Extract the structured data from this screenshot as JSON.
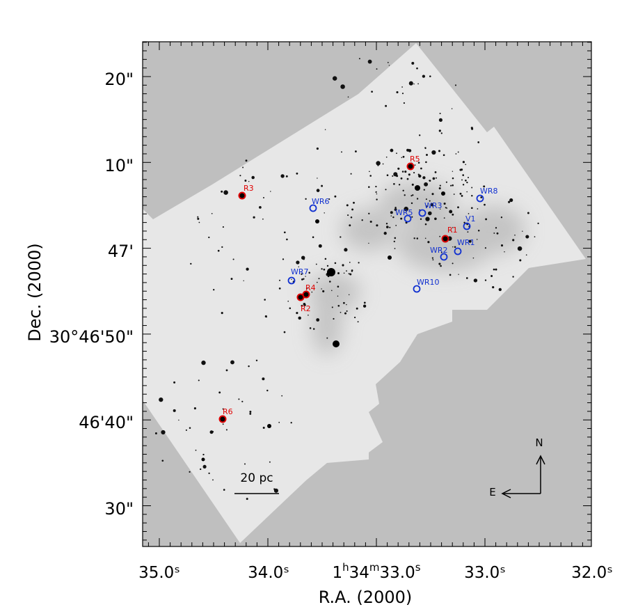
{
  "axes": {
    "xlabel": "R.A. (2000)",
    "ylabel": "Dec. (2000)",
    "x_ticks": [
      "35.0ˢ",
      "34.0ˢ",
      "33.0ˢ",
      "32.0ˢ"
    ],
    "x_tick_center": {
      "h": "1",
      "hsup": "h",
      "m": "34",
      "msup": "m",
      "s": "33.0",
      "ssup": "s"
    },
    "y_ticks": [
      "20\"",
      "10\"",
      "47'",
      "30°46'50\"",
      "46'40\"",
      "30\""
    ]
  },
  "compass": {
    "north": "N",
    "east": "E"
  },
  "scale_bar": {
    "label": "20 pc"
  },
  "markers": {
    "red": [
      "R1",
      "R2",
      "R3",
      "R4",
      "R5",
      "R6"
    ],
    "blue": [
      "WR1",
      "WR2",
      "WR3",
      "WR5",
      "WR6",
      "WR7",
      "WR8",
      "WR10",
      "V1"
    ]
  },
  "colors": {
    "background": "#bfbfbf",
    "frame": "#ffffff",
    "red_marker": "#e00000",
    "blue_marker": "#1030d0"
  }
}
